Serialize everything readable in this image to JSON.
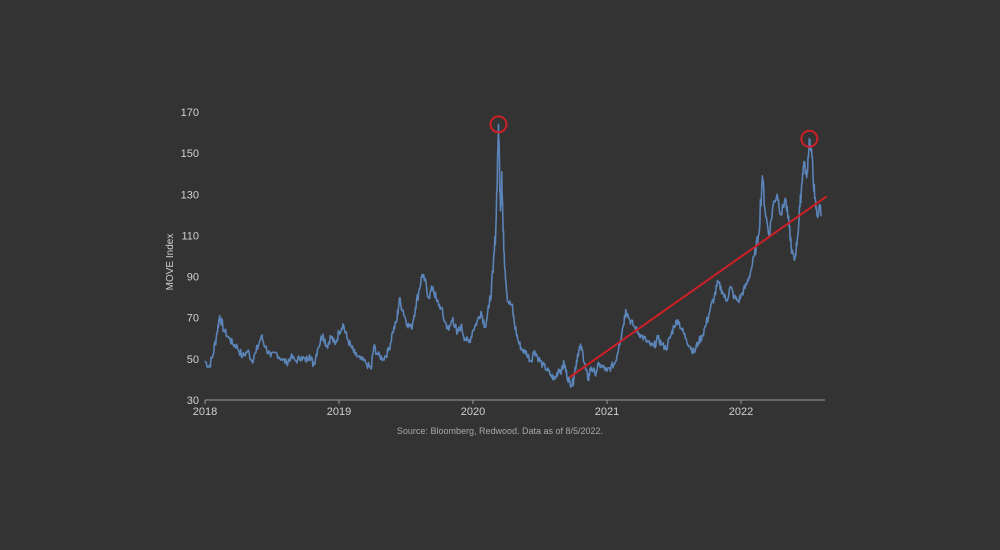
{
  "chart_data": {
    "type": "line",
    "ylabel": "MOVE Index",
    "xlabel": "",
    "ylim": [
      30,
      170
    ],
    "yticks": [
      30,
      50,
      70,
      90,
      110,
      130,
      150,
      170
    ],
    "ytick_labels": [
      "30",
      "50",
      "70",
      "90",
      "110",
      "130",
      "150",
      "170"
    ],
    "xlim": [
      2018.0,
      2022.6
    ],
    "xticks": [
      2018,
      2019,
      2020,
      2021,
      2022
    ],
    "xtick_labels": [
      "2018",
      "2019",
      "2020",
      "2021",
      "2022"
    ],
    "grid": false,
    "source_note": "Source: Bloomberg, Redwood. Data as of 8/5/2022.",
    "series": [
      {
        "name": "MOVE Index",
        "color": "#5b84b8",
        "points": [
          [
            2018.0,
            49
          ],
          [
            2018.03,
            46
          ],
          [
            2018.06,
            52
          ],
          [
            2018.09,
            63
          ],
          [
            2018.11,
            71
          ],
          [
            2018.14,
            64
          ],
          [
            2018.18,
            60
          ],
          [
            2018.21,
            57
          ],
          [
            2018.24,
            56
          ],
          [
            2018.28,
            51
          ],
          [
            2018.32,
            54
          ],
          [
            2018.35,
            49
          ],
          [
            2018.38,
            53
          ],
          [
            2018.42,
            61
          ],
          [
            2018.45,
            56
          ],
          [
            2018.49,
            51
          ],
          [
            2018.53,
            53
          ],
          [
            2018.57,
            50
          ],
          [
            2018.61,
            48
          ],
          [
            2018.64,
            51
          ],
          [
            2018.68,
            49
          ],
          [
            2018.72,
            51
          ],
          [
            2018.75,
            49
          ],
          [
            2018.78,
            52
          ],
          [
            2018.81,
            47
          ],
          [
            2018.84,
            55
          ],
          [
            2018.88,
            62
          ],
          [
            2018.91,
            56
          ],
          [
            2018.94,
            61
          ],
          [
            2018.97,
            57
          ],
          [
            2019.0,
            63
          ],
          [
            2019.03,
            67
          ],
          [
            2019.06,
            60
          ],
          [
            2019.09,
            56
          ],
          [
            2019.12,
            52
          ],
          [
            2019.16,
            50
          ],
          [
            2019.2,
            48
          ],
          [
            2019.24,
            45
          ],
          [
            2019.26,
            56
          ],
          [
            2019.29,
            52
          ],
          [
            2019.33,
            50
          ],
          [
            2019.37,
            54
          ],
          [
            2019.4,
            63
          ],
          [
            2019.43,
            68
          ],
          [
            2019.45,
            79
          ],
          [
            2019.48,
            73
          ],
          [
            2019.51,
            67
          ],
          [
            2019.54,
            65
          ],
          [
            2019.57,
            75
          ],
          [
            2019.6,
            84
          ],
          [
            2019.62,
            91
          ],
          [
            2019.64,
            88
          ],
          [
            2019.67,
            80
          ],
          [
            2019.7,
            85
          ],
          [
            2019.73,
            78
          ],
          [
            2019.76,
            75
          ],
          [
            2019.79,
            68
          ],
          [
            2019.82,
            64
          ],
          [
            2019.85,
            70
          ],
          [
            2019.88,
            62
          ],
          [
            2019.91,
            66
          ],
          [
            2019.94,
            60
          ],
          [
            2019.97,
            58
          ],
          [
            2020.0,
            64
          ],
          [
            2020.03,
            68
          ],
          [
            2020.06,
            73
          ],
          [
            2020.09,
            66
          ],
          [
            2020.12,
            75
          ],
          [
            2020.15,
            92
          ],
          [
            2020.17,
            113
          ],
          [
            2020.19,
            164
          ],
          [
            2020.205,
            122
          ],
          [
            2020.215,
            141
          ],
          [
            2020.225,
            112
          ],
          [
            2020.24,
            93
          ],
          [
            2020.26,
            78
          ],
          [
            2020.29,
            76
          ],
          [
            2020.31,
            67
          ],
          [
            2020.34,
            58
          ],
          [
            2020.37,
            54
          ],
          [
            2020.4,
            53
          ],
          [
            2020.43,
            49
          ],
          [
            2020.46,
            54
          ],
          [
            2020.49,
            50
          ],
          [
            2020.52,
            47
          ],
          [
            2020.55,
            45
          ],
          [
            2020.58,
            42
          ],
          [
            2020.61,
            40
          ],
          [
            2020.64,
            45
          ],
          [
            2020.66,
            44
          ],
          [
            2020.68,
            48
          ],
          [
            2020.7,
            42
          ],
          [
            2020.72,
            39
          ],
          [
            2020.74,
            37
          ],
          [
            2020.76,
            44
          ],
          [
            2020.78,
            52
          ],
          [
            2020.8,
            56
          ],
          [
            2020.82,
            53
          ],
          [
            2020.84,
            45
          ],
          [
            2020.86,
            40
          ],
          [
            2020.88,
            46
          ],
          [
            2020.91,
            43
          ],
          [
            2020.94,
            47
          ],
          [
            2020.97,
            46
          ],
          [
            2021.0,
            44
          ],
          [
            2021.03,
            46
          ],
          [
            2021.06,
            48
          ],
          [
            2021.09,
            57
          ],
          [
            2021.12,
            66
          ],
          [
            2021.14,
            74
          ],
          [
            2021.17,
            69
          ],
          [
            2021.2,
            66
          ],
          [
            2021.23,
            63
          ],
          [
            2021.26,
            61
          ],
          [
            2021.29,
            59
          ],
          [
            2021.32,
            57
          ],
          [
            2021.35,
            56
          ],
          [
            2021.38,
            60
          ],
          [
            2021.41,
            57
          ],
          [
            2021.44,
            55
          ],
          [
            2021.47,
            60
          ],
          [
            2021.5,
            66
          ],
          [
            2021.53,
            69
          ],
          [
            2021.56,
            64
          ],
          [
            2021.59,
            60
          ],
          [
            2021.62,
            56
          ],
          [
            2021.65,
            53
          ],
          [
            2021.68,
            58
          ],
          [
            2021.71,
            61
          ],
          [
            2021.74,
            67
          ],
          [
            2021.77,
            74
          ],
          [
            2021.8,
            80
          ],
          [
            2021.83,
            87
          ],
          [
            2021.86,
            83
          ],
          [
            2021.89,
            78
          ],
          [
            2021.92,
            85
          ],
          [
            2021.95,
            80
          ],
          [
            2021.98,
            78
          ],
          [
            2022.01,
            82
          ],
          [
            2022.04,
            86
          ],
          [
            2022.07,
            92
          ],
          [
            2022.1,
            100
          ],
          [
            2022.13,
            110
          ],
          [
            2022.16,
            139
          ],
          [
            2022.18,
            122
          ],
          [
            2022.21,
            110
          ],
          [
            2022.24,
            125
          ],
          [
            2022.27,
            130
          ],
          [
            2022.3,
            120
          ],
          [
            2022.33,
            128
          ],
          [
            2022.36,
            114
          ],
          [
            2022.38,
            102
          ],
          [
            2022.4,
            98
          ],
          [
            2022.42,
            108
          ],
          [
            2022.44,
            124
          ],
          [
            2022.46,
            140
          ],
          [
            2022.47,
            146
          ],
          [
            2022.49,
            138
          ],
          [
            2022.51,
            157
          ],
          [
            2022.53,
            148
          ],
          [
            2022.55,
            128
          ],
          [
            2022.57,
            119
          ],
          [
            2022.59,
            125
          ],
          [
            2022.6,
            120
          ]
        ]
      }
    ],
    "trend_line": {
      "color": "#cc1f26",
      "from": [
        2020.72,
        41
      ],
      "to": [
        2022.64,
        129
      ]
    },
    "highlights": [
      {
        "x": 2020.19,
        "y": 164,
        "color": "#cc1f26"
      },
      {
        "x": 2022.51,
        "y": 157,
        "color": "#cc1f26"
      }
    ]
  }
}
